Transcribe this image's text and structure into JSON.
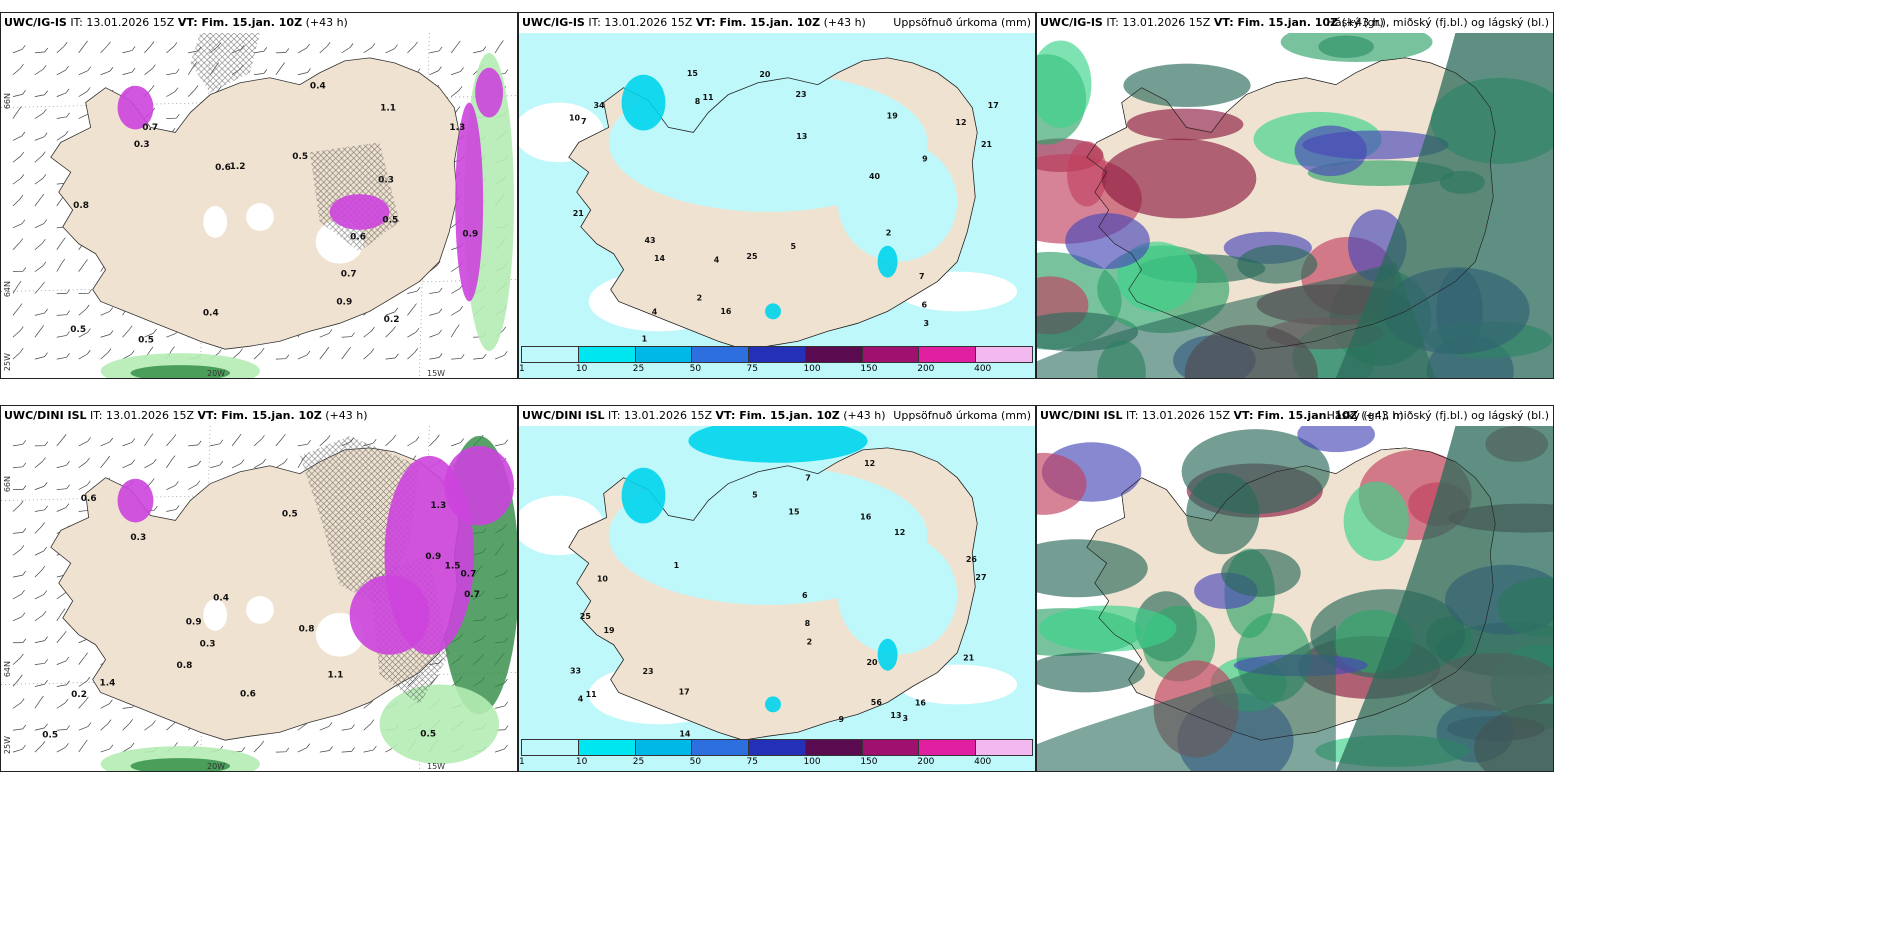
{
  "rows": [
    {
      "model": "UWC/IG-IS",
      "it": "13.01.2026 15Z",
      "vt": "Fim. 15.jan. 10Z",
      "lead": "(+43 h)",
      "precip_title": "Uppsöfnuð úrkoma (mm)",
      "cloud_title": "Háský (gr.), miðský (fj.bl.) og lágský (bl.)",
      "ice_labels": [
        "0.3",
        "0.7",
        "0.5",
        "0.2",
        "0.3",
        "0.4",
        "0.9",
        "0.6",
        "1.1",
        "0.5",
        "0.5",
        "0.4",
        "1.2",
        "0.8",
        "0.5",
        "0.9",
        "0.7",
        "1.3",
        "0.6"
      ],
      "precip_labels": [
        "11",
        "7",
        "2",
        "1",
        "20",
        "23",
        "40",
        "43",
        "17",
        "14",
        "16",
        "21",
        "7",
        "8",
        "6",
        "13",
        "4",
        "12",
        "10",
        "3",
        "5",
        "9",
        "34",
        "21",
        "15",
        "25",
        "19",
        "2",
        "4"
      ]
    },
    {
      "model": "UWC/DINI ISL",
      "it": "13.01.2026 15Z",
      "vt": "Fim. 15.jan. 10Z",
      "lead": "(+43 h)",
      "precip_title": "Uppsöfnuð úrkoma (mm)",
      "cloud_title": "Háský (gr.), miðský (fj.bl.) og lágský (bl.)",
      "ice_labels": [
        "0.7",
        "0.5",
        "0.6",
        "1.1",
        "0.8",
        "0.9",
        "1.3",
        "0.4",
        "0.2",
        "0.5",
        "1.4",
        "0.3",
        "0.9",
        "0.5",
        "0.6",
        "0.3",
        "1.5",
        "0.8",
        "0.7"
      ],
      "precip_labels": [
        "15",
        "16",
        "20",
        "11",
        "6",
        "25",
        "21",
        "23",
        "17",
        "5",
        "26",
        "56",
        "27",
        "19",
        "12",
        "3",
        "4",
        "8",
        "14",
        "10",
        "9",
        "13",
        "2",
        "1",
        "7",
        "16",
        "12",
        "33"
      ]
    }
  ],
  "axis": {
    "lon_labels": [
      "20W",
      "15W"
    ],
    "lat_labels": [
      "66N",
      "64N"
    ],
    "west_edge_label": "25W"
  },
  "legend": {
    "ticks": [
      "1",
      "10",
      "25",
      "50",
      "75",
      "100",
      "150",
      "200",
      "400"
    ],
    "colors": [
      "#bff8fa",
      "#00e6f0",
      "#00b8e8",
      "#2e6fe0",
      "#2430b8",
      "#5a0a4e",
      "#a0106e",
      "#e020a0",
      "#f4b8f0"
    ]
  },
  "colors": {
    "land": "#f0e2d0",
    "sea_precip": "#bff8fa",
    "ice_magenta": "#cc44dd",
    "green_light": "#b4ecb4",
    "green_dark": "#2e8a42",
    "cloud_high": "#8c1c40",
    "cloud_mid": "#4848b8",
    "cloud_low": "#2a6a5a"
  }
}
